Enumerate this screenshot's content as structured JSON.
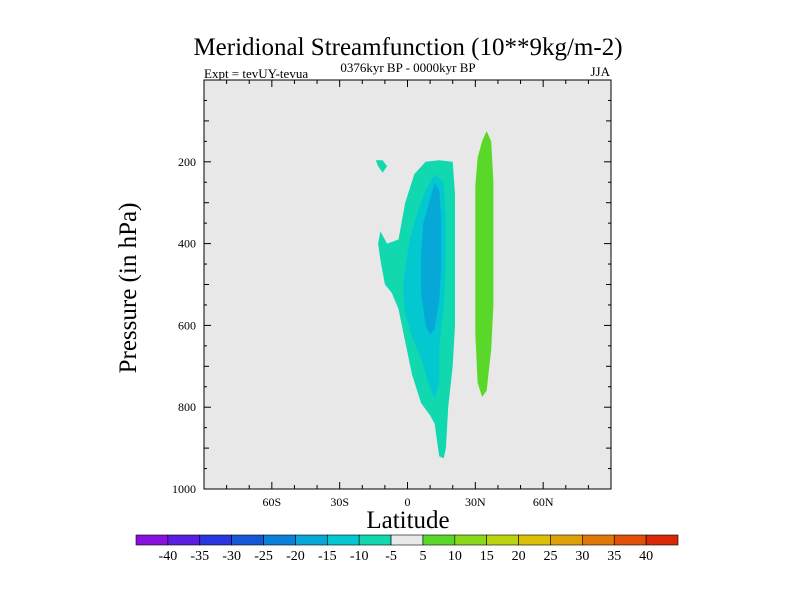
{
  "chart_data": {
    "type": "contour",
    "title": "Meridional Streamfunction (10**9kg/m-2)",
    "left_string": "Expt = tevUY-tevua",
    "center_string": "0376kyr BP - 0000kyr BP",
    "right_string": "JJA",
    "xlabel": "Latitude",
    "ylabel": "Pressure (in hPa)",
    "xlim": [
      -90,
      90
    ],
    "ylim": [
      1000,
      0
    ],
    "x_ticks": [
      {
        "value": -60,
        "label": "60S"
      },
      {
        "value": -30,
        "label": "30S"
      },
      {
        "value": 0,
        "label": "0"
      },
      {
        "value": 30,
        "label": "30N"
      },
      {
        "value": 60,
        "label": "60N"
      }
    ],
    "y_ticks": [
      {
        "value": 200,
        "label": "200"
      },
      {
        "value": 400,
        "label": "400"
      },
      {
        "value": 600,
        "label": "600"
      },
      {
        "value": 800,
        "label": "800"
      },
      {
        "value": 1000,
        "label": "1000"
      }
    ],
    "background_color": "#e8e8e8",
    "colorbar": {
      "labels": [
        "-40",
        "-35",
        "-30",
        "-25",
        "-20",
        "-15",
        "-10",
        "-5",
        "5",
        "10",
        "15",
        "20",
        "25",
        "30",
        "35",
        "40"
      ],
      "colors": [
        "#8a10e0",
        "#5a1ee0",
        "#2a36e0",
        "#1458d8",
        "#0a80d8",
        "#06a8d8",
        "#04c8d0",
        "#12d8b0",
        "#e8e8e8",
        "#5ad82a",
        "#8ad81a",
        "#bcd410",
        "#dcc008",
        "#e0a008",
        "#e07808",
        "#e05008",
        "#d82808"
      ]
    },
    "regions": [
      {
        "name": "negative-5-to-10",
        "range": "-10 to -5",
        "color": "#12d8b0",
        "polygon": [
          [
            -11,
            196
          ],
          [
            -9,
            211
          ],
          [
            -11,
            227
          ],
          [
            -13,
            211
          ],
          [
            -14,
            196
          ]
        ]
      },
      {
        "name": "negative-5-to-10",
        "range": "-10 to -5",
        "color": "#12d8b0",
        "polygon": [
          [
            8,
            200
          ],
          [
            14,
            196
          ],
          [
            20,
            200
          ],
          [
            21,
            280
          ],
          [
            21,
            400
          ],
          [
            21,
            500
          ],
          [
            21,
            600
          ],
          [
            20,
            700
          ],
          [
            18,
            800
          ],
          [
            17,
            900
          ],
          [
            16,
            925
          ],
          [
            14,
            920
          ],
          [
            13,
            880
          ],
          [
            12,
            840
          ],
          [
            10,
            820
          ],
          [
            6,
            790
          ],
          [
            2,
            720
          ],
          [
            -1,
            640
          ],
          [
            -4,
            560
          ],
          [
            -7,
            520
          ],
          [
            -10,
            500
          ],
          [
            -12,
            440
          ],
          [
            -13,
            400
          ],
          [
            -12,
            370
          ],
          [
            -9,
            400
          ],
          [
            -4,
            390
          ],
          [
            -1,
            300
          ],
          [
            3,
            230
          ]
        ]
      },
      {
        "name": "negative-10-to-15",
        "range": "-15 to -10",
        "color": "#04c8d0",
        "polygon": [
          [
            8,
            270
          ],
          [
            12,
            230
          ],
          [
            16,
            250
          ],
          [
            17,
            340
          ],
          [
            17,
            460
          ],
          [
            16,
            560
          ],
          [
            14,
            650
          ],
          [
            14,
            740
          ],
          [
            12,
            780
          ],
          [
            9,
            740
          ],
          [
            6,
            680
          ],
          [
            2,
            630
          ],
          [
            -1,
            570
          ],
          [
            -2,
            510
          ],
          [
            -1,
            460
          ],
          [
            1,
            390
          ],
          [
            4,
            330
          ]
        ]
      },
      {
        "name": "negative-15-to-20",
        "range": "-20 to -15",
        "color": "#06a8d8",
        "polygon": [
          [
            10,
            290
          ],
          [
            12,
            252
          ],
          [
            14,
            268
          ],
          [
            15,
            350
          ],
          [
            15,
            450
          ],
          [
            14,
            540
          ],
          [
            12,
            610
          ],
          [
            10,
            622
          ],
          [
            8,
            600
          ],
          [
            6,
            520
          ],
          [
            6,
            420
          ],
          [
            7,
            350
          ]
        ]
      },
      {
        "name": "positive-5-to-10",
        "range": "5 to 10",
        "color": "#5ad82a",
        "polygon": [
          [
            33,
            150
          ],
          [
            35,
            125
          ],
          [
            37,
            150
          ],
          [
            38,
            250
          ],
          [
            38,
            400
          ],
          [
            38,
            550
          ],
          [
            37,
            660
          ],
          [
            35,
            760
          ],
          [
            33,
            775
          ],
          [
            31,
            740
          ],
          [
            30,
            620
          ],
          [
            30,
            500
          ],
          [
            30,
            380
          ],
          [
            30,
            260
          ],
          [
            31,
            190
          ]
        ]
      }
    ]
  }
}
